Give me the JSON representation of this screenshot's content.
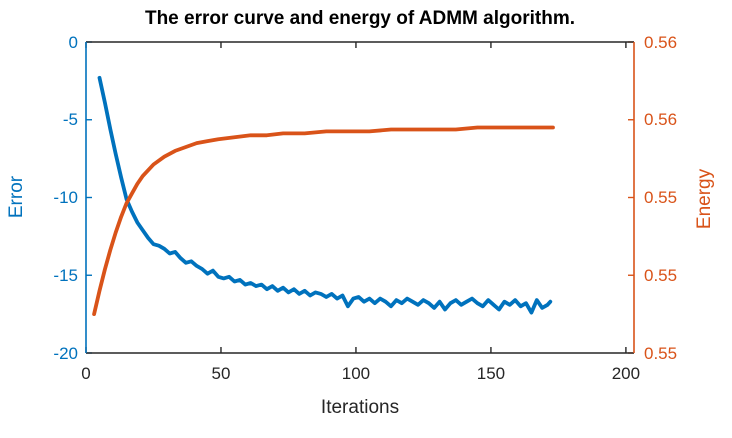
{
  "chart_data": {
    "type": "line",
    "title": "The error curve and energy of ADMM algorithm.",
    "xlabel": "Iterations",
    "background": "#ffffff",
    "axis_color": "#262626",
    "grid": false,
    "legend": null,
    "x_axis": {
      "ticks": [
        0,
        50,
        100,
        150,
        200
      ],
      "tick_labels": [
        "0",
        "50",
        "100",
        "150",
        "200"
      ],
      "range": [
        0,
        203
      ]
    },
    "left_axis": {
      "label": "Error",
      "color": "#0072BD",
      "ticks": [
        0,
        -5,
        -10,
        -15,
        -20
      ],
      "tick_labels": [
        "0",
        "-5",
        "-10",
        "-15",
        "-20"
      ],
      "range": [
        -20,
        0
      ]
    },
    "right_axis": {
      "label": "Energy",
      "color": "#D95319",
      "tick_values": [
        0.562,
        0.558,
        0.554,
        0.55,
        0.546
      ],
      "tick_labels": [
        "0.56",
        "0.56",
        "0.55",
        "0.55",
        "0.55"
      ],
      "range": [
        0.546,
        0.562
      ]
    },
    "series": [
      {
        "name": "error",
        "axis": "left",
        "color": "#0072BD",
        "line_width": 3.8,
        "x": [
          5,
          7,
          9,
          11,
          13,
          15,
          17,
          19,
          21,
          23,
          25,
          27,
          29,
          31,
          33,
          35,
          37,
          39,
          41,
          43,
          45,
          47,
          49,
          51,
          53,
          55,
          57,
          59,
          61,
          63,
          65,
          67,
          69,
          71,
          73,
          75,
          77,
          79,
          81,
          83,
          85,
          87,
          89,
          91,
          93,
          95,
          97,
          99,
          101,
          103,
          105,
          107,
          109,
          111,
          113,
          115,
          117,
          119,
          121,
          123,
          125,
          127,
          129,
          131,
          133,
          135,
          137,
          139,
          141,
          143,
          145,
          147,
          149,
          151,
          153,
          155,
          157,
          159,
          161,
          163,
          165,
          167,
          169,
          171,
          172
        ],
        "y": [
          -2.3,
          -3.9,
          -5.6,
          -7.2,
          -8.7,
          -10.1,
          -10.9,
          -11.6,
          -12.1,
          -12.6,
          -13.0,
          -13.1,
          -13.3,
          -13.6,
          -13.5,
          -13.9,
          -14.2,
          -14.1,
          -14.4,
          -14.6,
          -14.9,
          -14.7,
          -15.1,
          -15.2,
          -15.1,
          -15.4,
          -15.3,
          -15.6,
          -15.5,
          -15.7,
          -15.6,
          -15.9,
          -15.7,
          -16.0,
          -15.8,
          -16.1,
          -15.9,
          -16.2,
          -16.0,
          -16.3,
          -16.1,
          -16.2,
          -16.4,
          -16.2,
          -16.5,
          -16.3,
          -17.0,
          -16.5,
          -16.4,
          -16.7,
          -16.5,
          -16.8,
          -16.5,
          -16.7,
          -17.0,
          -16.6,
          -16.8,
          -16.5,
          -16.7,
          -16.9,
          -16.6,
          -16.8,
          -17.1,
          -16.7,
          -17.2,
          -16.8,
          -16.6,
          -16.9,
          -16.7,
          -16.5,
          -16.8,
          -17.0,
          -16.6,
          -16.9,
          -17.2,
          -16.7,
          -16.9,
          -16.6,
          -17.0,
          -16.8,
          -17.4,
          -16.6,
          -17.1,
          -16.9,
          -16.7
        ]
      },
      {
        "name": "energy",
        "axis": "right",
        "color": "#D95319",
        "line_width": 3.8,
        "x": [
          3,
          5,
          7,
          9,
          11,
          13,
          15,
          17,
          19,
          21,
          25,
          29,
          33,
          37,
          41,
          45,
          49,
          55,
          61,
          67,
          73,
          81,
          89,
          97,
          105,
          113,
          121,
          129,
          137,
          145,
          153,
          161,
          169,
          173
        ],
        "y": [
          0.548,
          0.5492,
          0.5503,
          0.5513,
          0.5522,
          0.553,
          0.5537,
          0.5542,
          0.5547,
          0.5551,
          0.5557,
          0.5561,
          0.5564,
          0.5566,
          0.5568,
          0.5569,
          0.557,
          0.5571,
          0.5572,
          0.5572,
          0.5573,
          0.5573,
          0.5574,
          0.5574,
          0.5574,
          0.5575,
          0.5575,
          0.5575,
          0.5575,
          0.5576,
          0.5576,
          0.5576,
          0.5576,
          0.5576
        ]
      }
    ]
  }
}
